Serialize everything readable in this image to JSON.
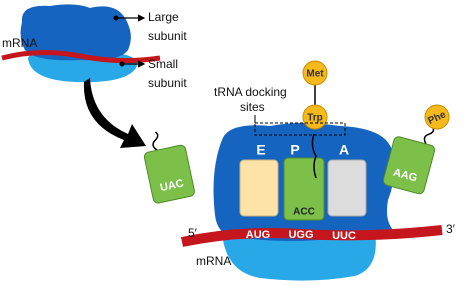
{
  "labels": {
    "mrna_top": "mRNA",
    "large_subunit": [
      "Large",
      "subunit"
    ],
    "small_subunit": [
      "Small",
      "subunit"
    ],
    "docking_sites": [
      "tRNA docking",
      "sites"
    ],
    "five_prime": "5′",
    "three_prime": "3′",
    "mrna_bottom": "mRNA"
  },
  "sites": [
    "E",
    "P",
    "A"
  ],
  "amino_acids": {
    "free_trna": "Phe",
    "chain_top": "Met",
    "chain_bottom": "Trp"
  },
  "anticodons": {
    "incoming_left": "UAC",
    "p_site": "ACC",
    "incoming_right": "AAG"
  },
  "codons": [
    "AUG",
    "UGG",
    "UUC"
  ]
}
